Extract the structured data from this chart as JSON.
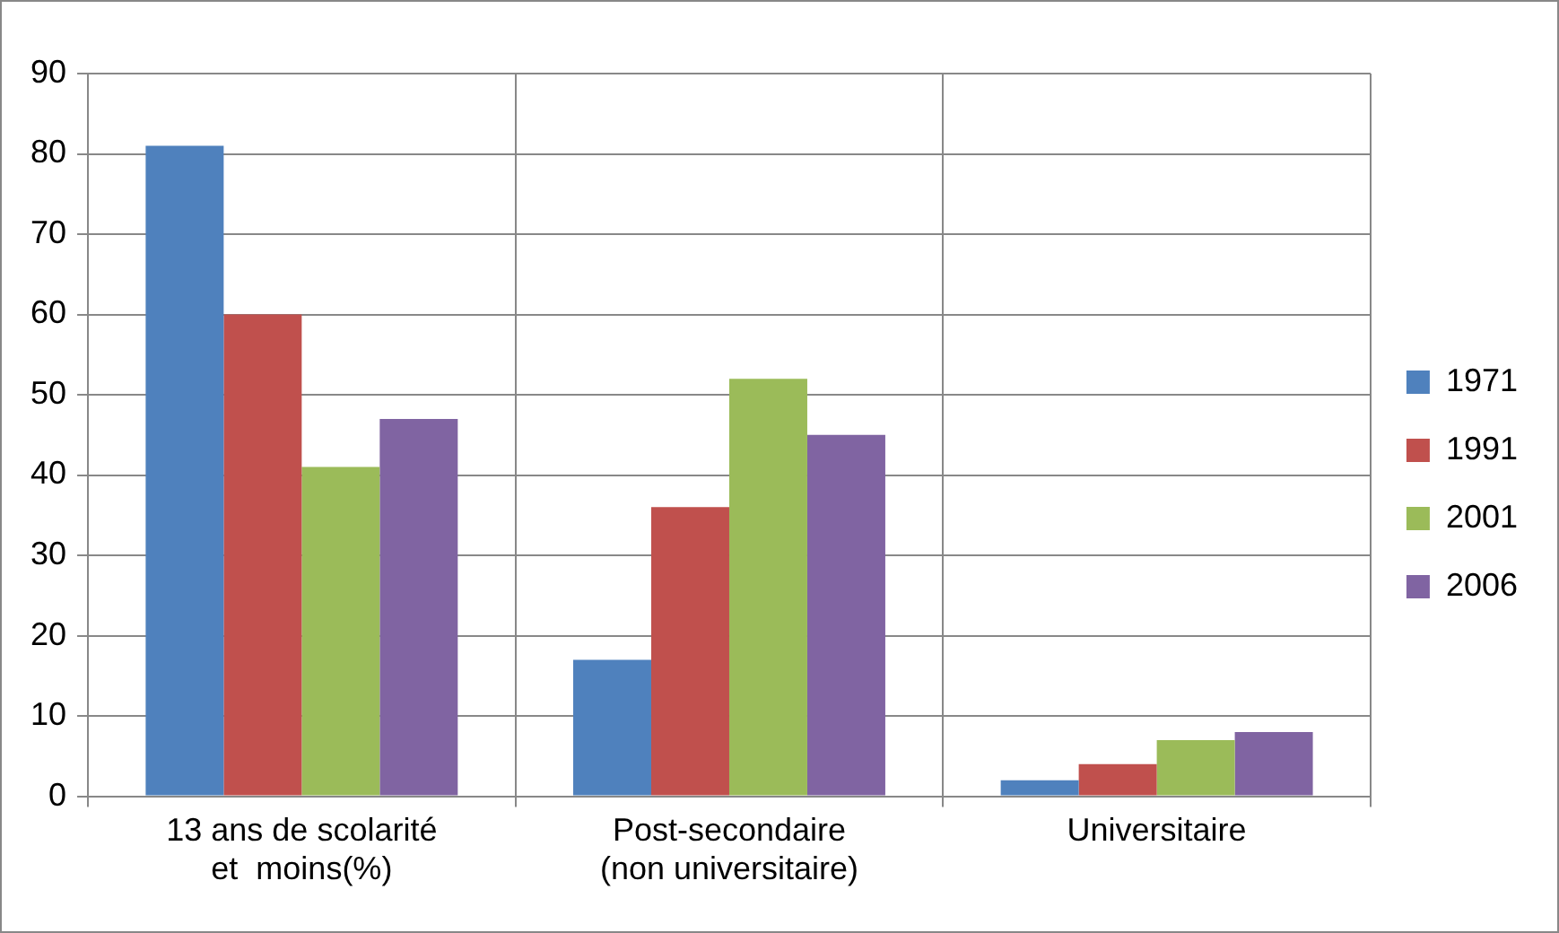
{
  "chart_data": {
    "type": "bar",
    "categories": [
      "13 ans de scolarité\net  moins(%)",
      "Post-secondaire\n(non universitaire)",
      "Universitaire"
    ],
    "series": [
      {
        "name": "1971",
        "color": "#4f81bd",
        "values": [
          81,
          17,
          2
        ]
      },
      {
        "name": "1991",
        "color": "#c0504d",
        "values": [
          60,
          36,
          4
        ]
      },
      {
        "name": "2001",
        "color": "#9bbb59",
        "values": [
          41,
          52,
          7
        ]
      },
      {
        "name": "2006",
        "color": "#8064a2",
        "values": [
          47,
          45,
          8
        ]
      }
    ],
    "ylim": [
      0,
      90
    ],
    "yticks": [
      0,
      10,
      20,
      30,
      40,
      50,
      60,
      70,
      80,
      90
    ],
    "grid": true,
    "legend": "right"
  }
}
